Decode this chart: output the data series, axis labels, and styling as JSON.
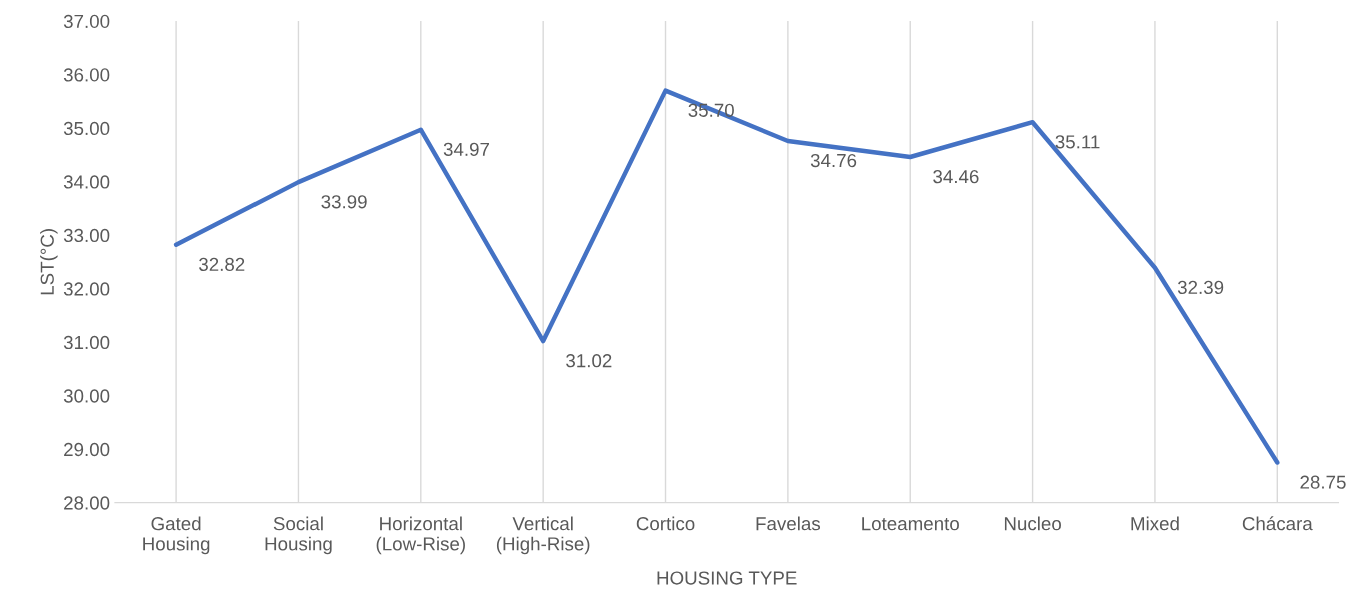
{
  "chart_data": {
    "type": "line",
    "xlabel": "HOUSING TYPE",
    "ylabel": "LST(°C)",
    "categories": [
      "Gated\nHousing",
      "Social\nHousing",
      "Horizontal\n(Low-Rise)",
      "Vertical\n(High-Rise)",
      "Cortico",
      "Favelas",
      "Loteamento",
      "Nucleo",
      "Mixed",
      "Chácara"
    ],
    "series": [
      {
        "color": "#4472c4",
        "values": [
          32.82,
          33.99,
          34.97,
          31.02,
          35.7,
          34.76,
          34.46,
          35.11,
          32.39,
          28.75
        ],
        "value_labels": [
          "32.82",
          "33.99",
          "34.97",
          "31.02",
          "35.70",
          "34.76",
          "34.46",
          "35.11",
          "32.39",
          "28.75"
        ]
      }
    ],
    "ylim": [
      28,
      37
    ],
    "yticks": [
      {
        "value": 28,
        "label": "28.00"
      },
      {
        "value": 29,
        "label": "29.00"
      },
      {
        "value": 30,
        "label": "30.00"
      },
      {
        "value": 31,
        "label": "31.00"
      },
      {
        "value": 32,
        "label": "32.00"
      },
      {
        "value": 33,
        "label": "33.00"
      },
      {
        "value": 34,
        "label": "34.00"
      },
      {
        "value": 35,
        "label": "35.00"
      },
      {
        "value": 36,
        "label": "36.00"
      },
      {
        "value": 37,
        "label": "37.00"
      }
    ],
    "grid": "x",
    "marker": "none",
    "line_style": "solid"
  }
}
